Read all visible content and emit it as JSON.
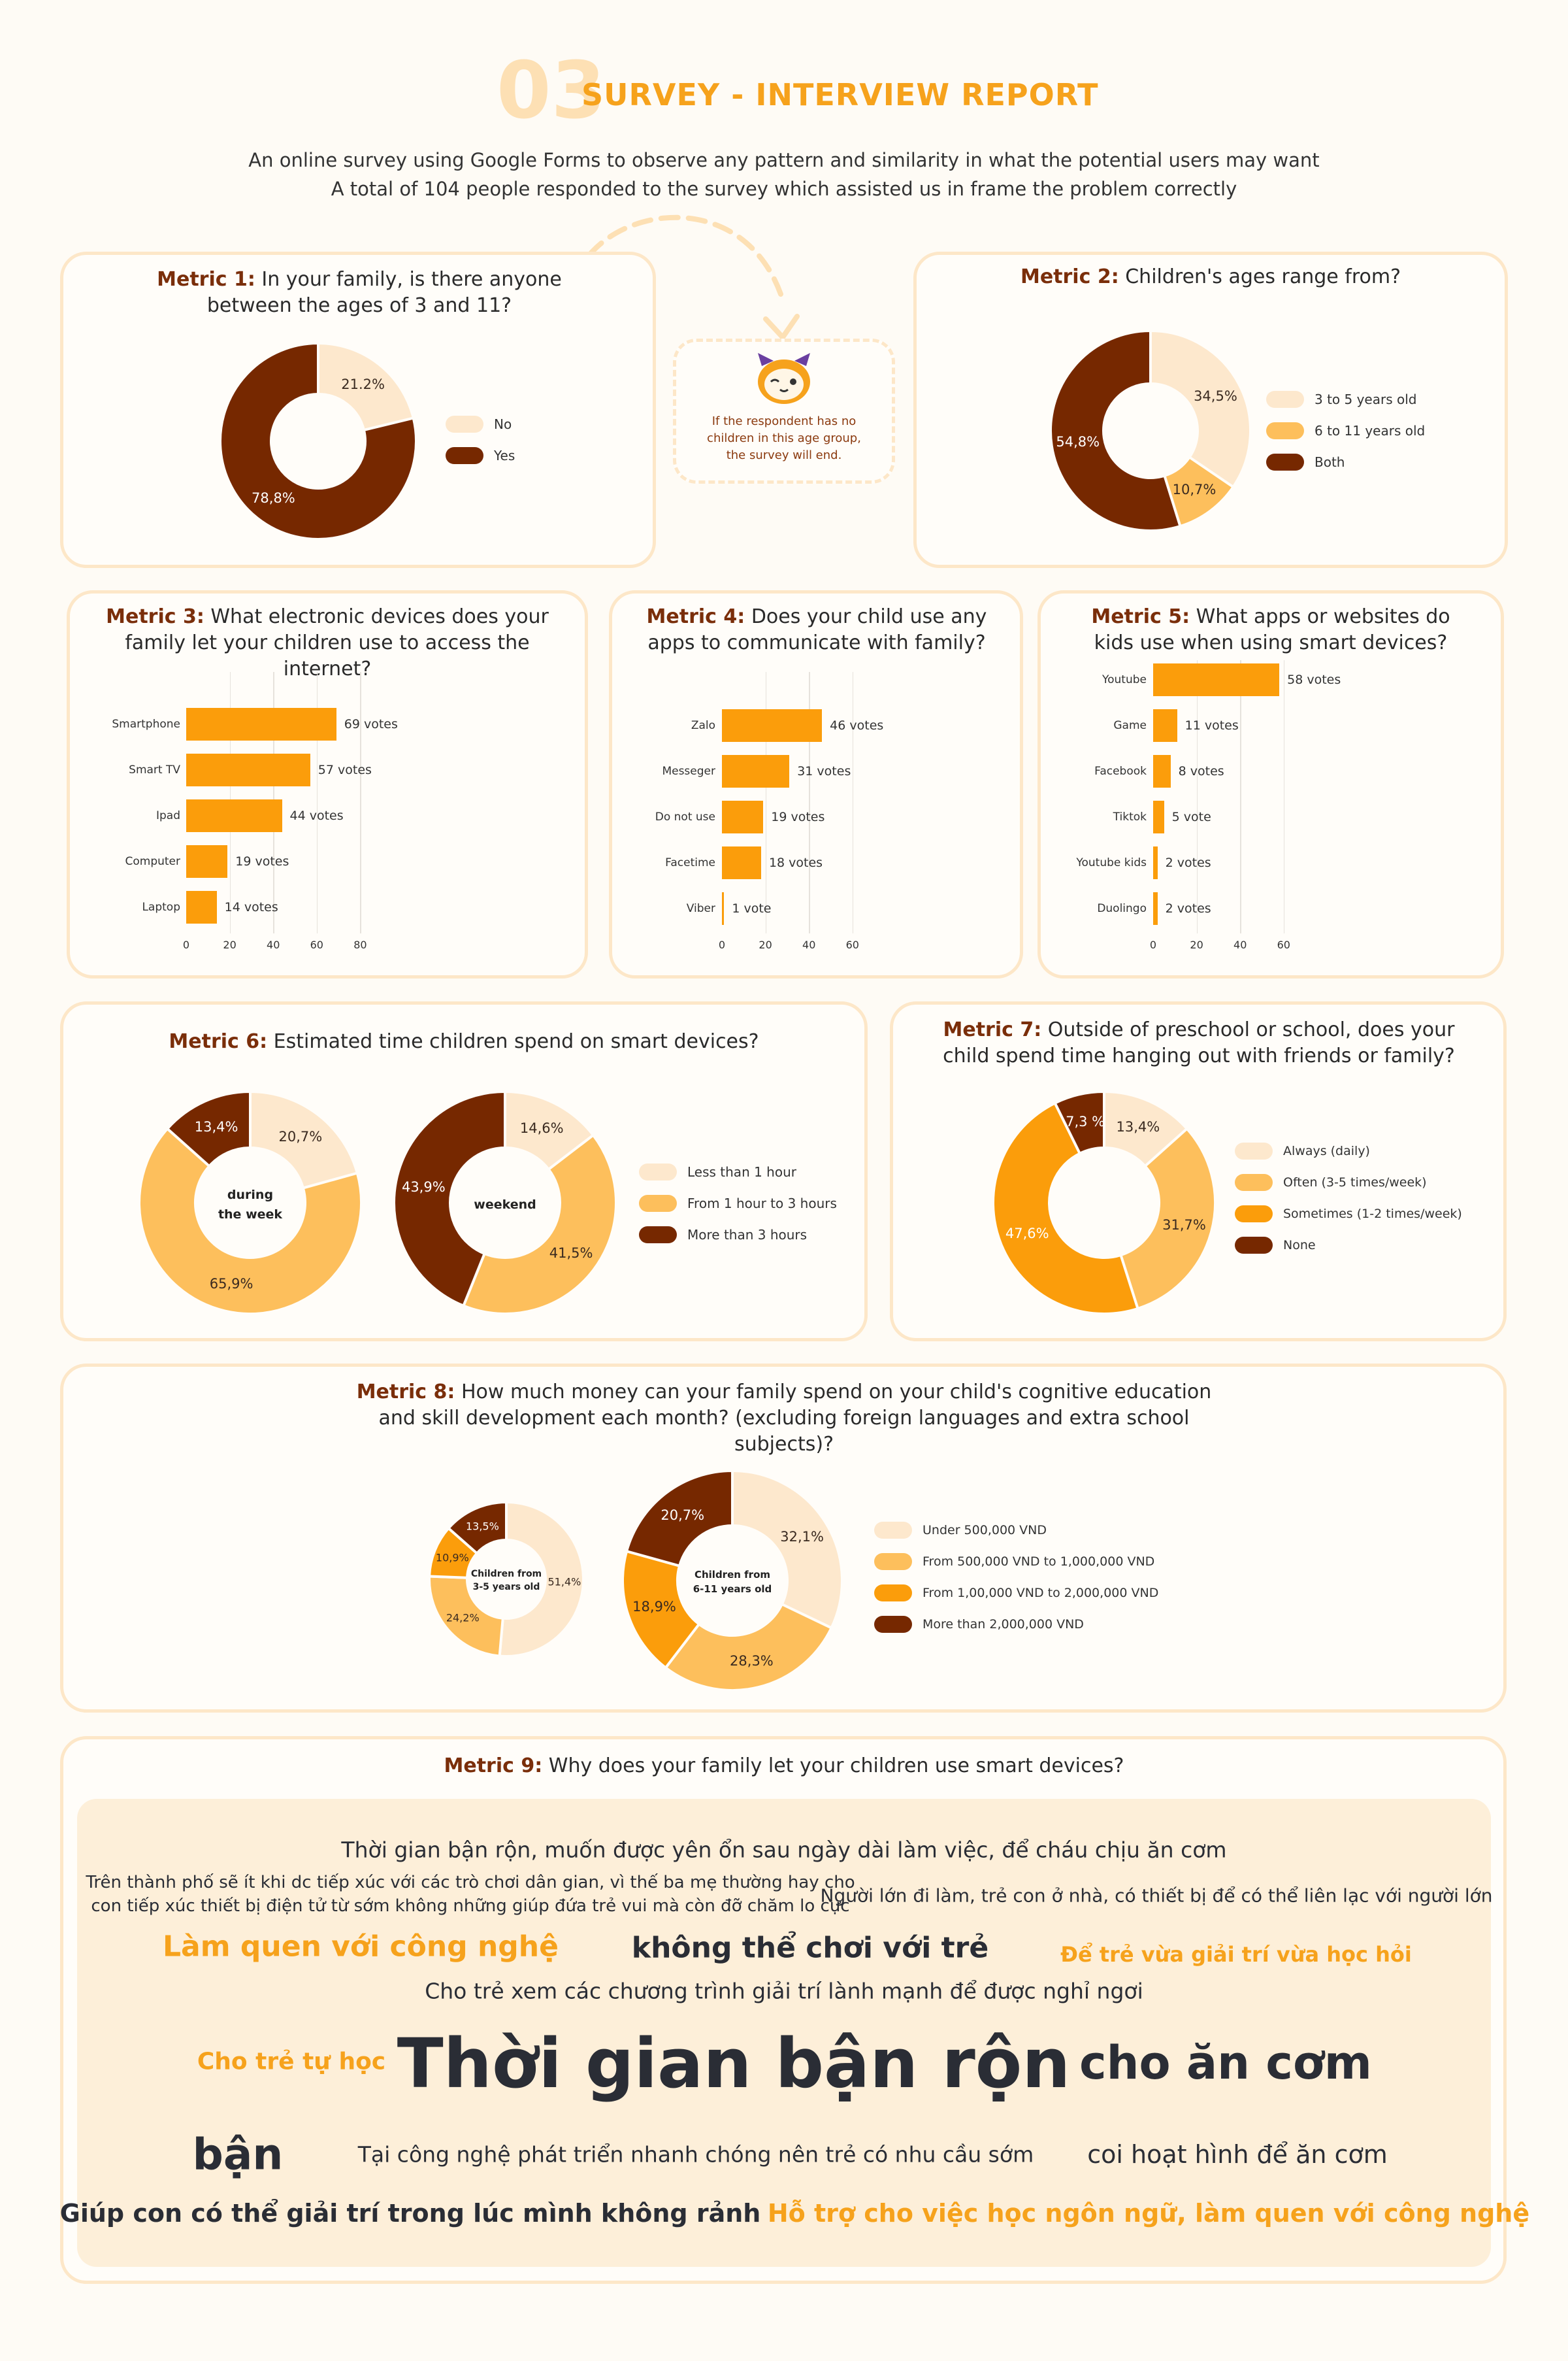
{
  "header": {
    "number": "03",
    "title": "SURVEY - INTERVIEW REPORT",
    "line1": "An online survey using Google Forms to observe any pattern and similarity in what the potential users may want",
    "line2": "A total of 104 people responded to the survey which assisted us in frame the problem correctly"
  },
  "note": {
    "text": "If the respondent has no children in this age group, the survey will end.",
    "icon": "mascot-icon"
  },
  "colors": {
    "pale": "#fde8cd",
    "light": "#fdbf5c",
    "orange": "#fb9d0b",
    "brown": "#762800",
    "accent": "#f6a21c",
    "border": "#fde7c8"
  },
  "metrics": {
    "m1": {
      "label": "Metric 1:",
      "question": "In your family, is there anyone between the ages of 3 and 11?",
      "slices": [
        {
          "name": "No",
          "value": 21.2,
          "text": "21.2%"
        },
        {
          "name": "Yes",
          "value": 78.8,
          "text": "78,8%"
        }
      ]
    },
    "m2": {
      "label": "Metric 2:",
      "question": "Children's ages range from?",
      "slices": [
        {
          "name": "3 to 5 years old",
          "value": 34.5,
          "text": "34,5%"
        },
        {
          "name": "6 to 11 years old",
          "value": 10.7,
          "text": "10,7%"
        },
        {
          "name": "Both",
          "value": 54.8,
          "text": "54,8%"
        }
      ]
    },
    "m3": {
      "label": "Metric 3:",
      "question": "What electronic devices does your family let your children use to access the internet?",
      "ticks": [
        "0",
        "20",
        "40",
        "60",
        "80"
      ],
      "bars": [
        {
          "name": "Smartphone",
          "value": 69,
          "text": "69 votes"
        },
        {
          "name": "Smart TV",
          "value": 57,
          "text": "57 votes"
        },
        {
          "name": "Ipad",
          "value": 44,
          "text": "44 votes"
        },
        {
          "name": "Computer",
          "value": 19,
          "text": "19 votes"
        },
        {
          "name": "Laptop",
          "value": 14,
          "text": "14 votes"
        }
      ]
    },
    "m4": {
      "label": "Metric 4:",
      "question": "Does your child use any apps to communicate with family?",
      "ticks": [
        "0",
        "20",
        "40",
        "60"
      ],
      "bars": [
        {
          "name": "Zalo",
          "value": 46,
          "text": "46 votes"
        },
        {
          "name": "Messeger",
          "value": 31,
          "text": "31 votes"
        },
        {
          "name": "Do not use",
          "value": 19,
          "text": "19 votes"
        },
        {
          "name": "Facetime",
          "value": 18,
          "text": "18 votes"
        },
        {
          "name": "Viber",
          "value": 1,
          "text": "1 vote"
        }
      ]
    },
    "m5": {
      "label": "Metric 5:",
      "question": "What apps or websites do kids use when using smart devices?",
      "ticks": [
        "0",
        "20",
        "40",
        "60"
      ],
      "bars": [
        {
          "name": "Youtube",
          "value": 58,
          "text": "58 votes"
        },
        {
          "name": "Game",
          "value": 11,
          "text": "11 votes"
        },
        {
          "name": "Facebook",
          "value": 8,
          "text": "8 votes"
        },
        {
          "name": "Tiktok",
          "value": 5,
          "text": "5 vote"
        },
        {
          "name": "Youtube kids",
          "value": 2,
          "text": "2 votes"
        },
        {
          "name": "Duolingo",
          "value": 2,
          "text": "2 votes"
        }
      ]
    },
    "m6": {
      "label": "Metric 6:",
      "question": "Estimated time children spend on smart devices?",
      "legend": [
        "Less than 1 hour",
        "From 1 hour to 3 hours",
        "More than 3 hours"
      ],
      "week_label": "during the week",
      "weekend_label": "weekend",
      "week": [
        {
          "value": 20.7,
          "text": "20,7%"
        },
        {
          "value": 65.9,
          "text": "65,9%"
        },
        {
          "value": 13.4,
          "text": "13,4%"
        }
      ],
      "weekend": [
        {
          "value": 14.6,
          "text": "14,6%"
        },
        {
          "value": 41.5,
          "text": "41,5%"
        },
        {
          "value": 43.9,
          "text": "43,9%"
        }
      ]
    },
    "m7": {
      "label": "Metric 7:",
      "question": "Outside of preschool or school, does your child spend time hanging out with friends or family?",
      "slices": [
        {
          "name": "Always (daily)",
          "value": 13.4,
          "text": "13,4%"
        },
        {
          "name": "Often (3-5 times/week)",
          "value": 31.7,
          "text": "31,7%"
        },
        {
          "name": "Sometimes (1-2 times/week)",
          "value": 47.6,
          "text": "47,6%"
        },
        {
          "name": "None",
          "value": 7.3,
          "text": "7,3 %"
        }
      ]
    },
    "m8": {
      "label": "Metric 8:",
      "question": "How much money can your family spend on your child's cognitive education and skill development each month? (excluding foreign languages and extra school subjects)?",
      "legend": [
        "Under 500,000 VND",
        "From 500,000 VND to 1,000,000 VND",
        "From 1,00,000 VND to 2,000,000 VND",
        "More than 2,000,000 VND"
      ],
      "small_label": "Children from 3-5 years old",
      "big_label": "Children from 6-11 years old",
      "small": [
        {
          "value": 51.4,
          "text": "51,4%"
        },
        {
          "value": 24.2,
          "text": "24,2%"
        },
        {
          "value": 10.9,
          "text": "10,9%"
        },
        {
          "value": 13.5,
          "text": "13,5%"
        }
      ],
      "big": [
        {
          "value": 32.1,
          "text": "32,1%"
        },
        {
          "value": 28.3,
          "text": "28,3%"
        },
        {
          "value": 18.9,
          "text": "18,9%"
        },
        {
          "value": 20.7,
          "text": "20,7%"
        }
      ]
    },
    "m9": {
      "label": "Metric 9:",
      "question": "Why does your family let your children use smart devices?"
    }
  },
  "cloud": [
    {
      "text": "Thời gian bận rộn, muốn được yên ổn sau ngày dài làm việc, để cháu chịu ăn cơm"
    },
    {
      "text": "Trên thành phố sẽ ít khi dc tiếp xúc với các trò chơi dân gian, vì thế ba mẹ thường hay cho"
    },
    {
      "text": "con tiếp xúc thiết bị điện tử từ sớm không những giúp đứa trẻ vui mà còn đỡ chăm lo cực"
    },
    {
      "text": "Người lớn đi làm, trẻ con ở nhà, có thiết bị để có thể liên lạc với người lớn"
    },
    {
      "text": "Làm quen với công nghệ"
    },
    {
      "text": "không thể chơi với trẻ"
    },
    {
      "text": "Để trẻ vừa giải trí vừa học hỏi"
    },
    {
      "text": "Cho trẻ xem các chương trình giải trí lành mạnh để được nghỉ ngơi"
    },
    {
      "text": "Cho trẻ tự học"
    },
    {
      "text": "Thời gian bận rộn"
    },
    {
      "text": "cho ăn cơm"
    },
    {
      "text": "bận"
    },
    {
      "text": "Tại công nghệ phát triển nhanh chóng nên trẻ có nhu cầu sớm"
    },
    {
      "text": "coi hoạt hình để ăn cơm"
    },
    {
      "text": "Giúp con có thể giải trí trong lúc mình không rảnh"
    },
    {
      "text": "Hỗ trợ cho việc học ngôn ngữ, làm quen với công nghệ"
    }
  ]
}
